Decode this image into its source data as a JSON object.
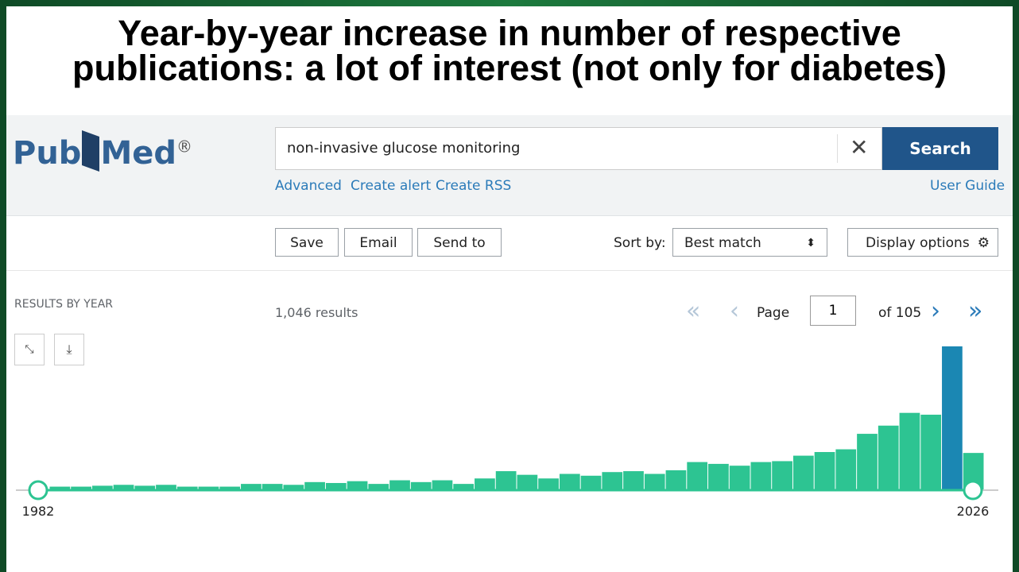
{
  "title_lines": [
    "Year-by-year increase in number of respective",
    "publications: a lot of interest (not only for diabetes)"
  ],
  "logo": {
    "pub": "Pub",
    "med": "Med",
    "mark": "®"
  },
  "search": {
    "query": "non-invasive glucose monitoring",
    "button": "Search"
  },
  "links": [
    "Advanced",
    "Create alert",
    "Create RSS"
  ],
  "user_guide": "User Guide",
  "toolbar": {
    "buttons": [
      "Save",
      "Email",
      "Send to"
    ],
    "sort_label": "Sort by:",
    "sort_value": "Best match",
    "display": "Display options"
  },
  "results": {
    "heading": "RESULTS BY YEAR",
    "count": "1,046 results",
    "page_label": "Page",
    "page": "1",
    "page_total": "of 105"
  },
  "chart_data": {
    "type": "bar",
    "x": [
      1982,
      1983,
      1984,
      1985,
      1986,
      1987,
      1988,
      1989,
      1990,
      1991,
      1992,
      1993,
      1994,
      1995,
      1996,
      1997,
      1998,
      1999,
      2000,
      2001,
      2002,
      2003,
      2004,
      2005,
      2006,
      2007,
      2008,
      2009,
      2010,
      2011,
      2012,
      2013,
      2014,
      2015,
      2016,
      2017,
      2018,
      2019,
      2020,
      2021,
      2022,
      2023,
      2024,
      2025
    ],
    "values": [
      3,
      3,
      4,
      5,
      4,
      5,
      3,
      3,
      3,
      6,
      6,
      5,
      8,
      7,
      9,
      6,
      10,
      8,
      10,
      6,
      12,
      20,
      16,
      12,
      17,
      15,
      19,
      20,
      17,
      21,
      30,
      28,
      26,
      30,
      31,
      37,
      41,
      44,
      61,
      70,
      84,
      82,
      157,
      40
    ],
    "color": "#2dc492",
    "highlight": {
      "index": 42,
      "color": "#1b87b3"
    },
    "xlim": [
      1982,
      2026
    ],
    "xticks": [
      1982,
      2026
    ],
    "ylim": [
      0,
      157
    ]
  }
}
